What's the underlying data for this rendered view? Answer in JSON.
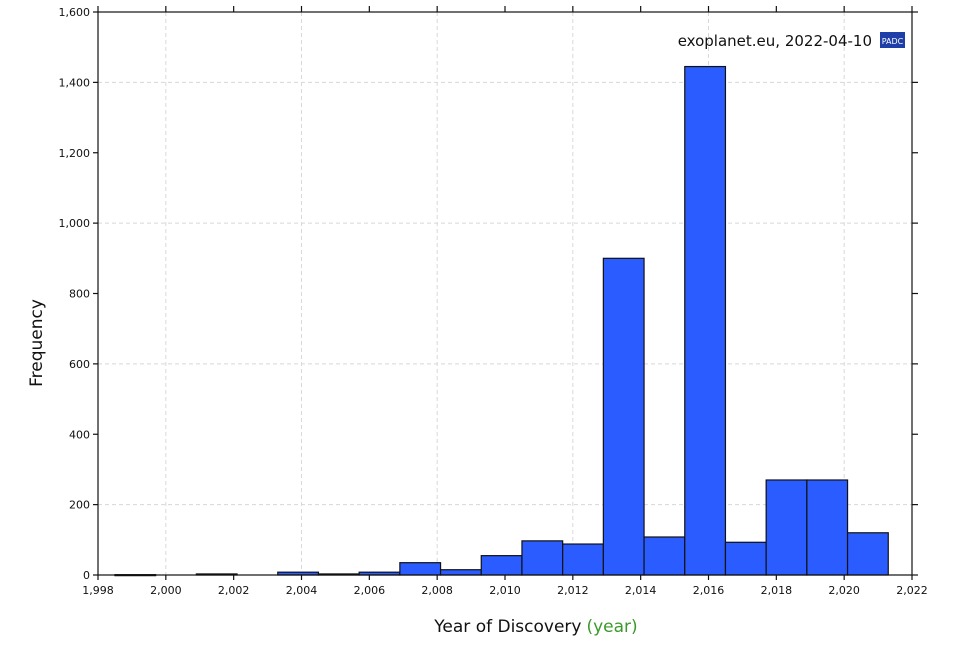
{
  "chart_data": {
    "type": "bar",
    "xlabel": "Year of Discovery",
    "xlabel_units": "(year)",
    "ylabel": "Frequency",
    "watermark": "exoplanet.eu, 2022-04-10",
    "badge": "PADC",
    "xlim": [
      1998,
      2022
    ],
    "ylim": [
      0,
      1600
    ],
    "x_ticks": [
      {
        "value": 1998,
        "label": "1,998"
      },
      {
        "value": 2000,
        "label": "2,000"
      },
      {
        "value": 2002,
        "label": "2,002"
      },
      {
        "value": 2004,
        "label": "2,004"
      },
      {
        "value": 2006,
        "label": "2,006"
      },
      {
        "value": 2008,
        "label": "2,008"
      },
      {
        "value": 2010,
        "label": "2,010"
      },
      {
        "value": 2012,
        "label": "2,012"
      },
      {
        "value": 2014,
        "label": "2,014"
      },
      {
        "value": 2016,
        "label": "2,016"
      },
      {
        "value": 2018,
        "label": "2,018"
      },
      {
        "value": 2020,
        "label": "2,020"
      },
      {
        "value": 2022,
        "label": "2,022"
      }
    ],
    "y_ticks": [
      {
        "value": 0,
        "label": "0"
      },
      {
        "value": 200,
        "label": "200"
      },
      {
        "value": 400,
        "label": "400"
      },
      {
        "value": 600,
        "label": "600"
      },
      {
        "value": 800,
        "label": "800"
      },
      {
        "value": 1000,
        "label": "1,000"
      },
      {
        "value": 1200,
        "label": "1,200"
      },
      {
        "value": 1400,
        "label": "1,400"
      },
      {
        "value": 1600,
        "label": "1,600"
      }
    ],
    "bins": [
      {
        "x0": 1998.5,
        "x1": 1999.7,
        "value": 1
      },
      {
        "x0": 1999.7,
        "x1": 2000.9,
        "value": 0
      },
      {
        "x0": 2000.9,
        "x1": 2002.1,
        "value": 3
      },
      {
        "x0": 2002.1,
        "x1": 2003.3,
        "value": 0
      },
      {
        "x0": 2003.3,
        "x1": 2004.5,
        "value": 8
      },
      {
        "x0": 2004.5,
        "x1": 2005.7,
        "value": 3
      },
      {
        "x0": 2005.7,
        "x1": 2006.9,
        "value": 8
      },
      {
        "x0": 2006.9,
        "x1": 2008.1,
        "value": 35
      },
      {
        "x0": 2008.1,
        "x1": 2009.3,
        "value": 15
      },
      {
        "x0": 2009.3,
        "x1": 2010.5,
        "value": 55
      },
      {
        "x0": 2010.5,
        "x1": 2011.7,
        "value": 97
      },
      {
        "x0": 2011.7,
        "x1": 2012.9,
        "value": 88
      },
      {
        "x0": 2012.9,
        "x1": 2014.1,
        "value": 900
      },
      {
        "x0": 2014.1,
        "x1": 2015.3,
        "value": 108
      },
      {
        "x0": 2015.3,
        "x1": 2016.5,
        "value": 1445
      },
      {
        "x0": 2016.5,
        "x1": 2017.7,
        "value": 93
      },
      {
        "x0": 2017.7,
        "x1": 2018.9,
        "value": 270
      },
      {
        "x0": 2018.9,
        "x1": 2020.1,
        "value": 270
      },
      {
        "x0": 2020.1,
        "x1": 2021.3,
        "value": 120
      }
    ],
    "grid": true,
    "colors": {
      "bar": "#2b5cff",
      "bar_edge": "#111111",
      "units": "#3a9a2a",
      "badge": "#1f3fa8"
    }
  }
}
